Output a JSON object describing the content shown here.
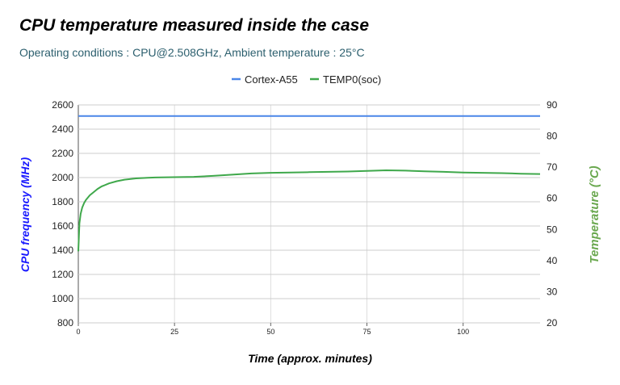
{
  "title": "CPU temperature measured inside the case",
  "subtitle": "Operating conditions : CPU@2.508GHz, Ambient temperature : 25°C",
  "chart_data": {
    "type": "line",
    "title": "CPU temperature measured inside the case",
    "subtitle": "Operating conditions : CPU@2.508GHz, Ambient temperature : 25°C",
    "xlabel": "Time (approx. minutes)",
    "ylabel_left": "CPU frequency (MHz)",
    "ylabel_right": "Temperature (°C)",
    "xlim": [
      0,
      120
    ],
    "ylim_left": [
      800,
      2600
    ],
    "ylim_right": [
      20,
      90
    ],
    "x_ticks": [
      0,
      25,
      50,
      75,
      100
    ],
    "y_ticks_left": [
      800,
      1000,
      1200,
      1400,
      1600,
      1800,
      2000,
      2200,
      2400,
      2600
    ],
    "y_ticks_right": [
      20,
      30,
      40,
      50,
      60,
      70,
      80,
      90
    ],
    "grid": true,
    "legend_position": "top",
    "series": [
      {
        "name": "Cortex-A55",
        "axis": "left",
        "color": "#4a86e8",
        "x": [
          0,
          120
        ],
        "values": [
          2508,
          2508
        ]
      },
      {
        "name": "TEMP0(soc)",
        "axis": "right",
        "color": "#3fa84b",
        "x": [
          0,
          0.3,
          0.6,
          1,
          1.5,
          2,
          3,
          4,
          5,
          6,
          8,
          10,
          12,
          15,
          18,
          20,
          25,
          30,
          35,
          40,
          45,
          50,
          55,
          60,
          65,
          70,
          75,
          80,
          85,
          90,
          95,
          100,
          105,
          110,
          115,
          120
        ],
        "values": [
          43,
          52,
          55,
          57,
          58.5,
          59.5,
          61,
          62,
          63,
          63.8,
          64.8,
          65.5,
          66,
          66.4,
          66.6,
          66.7,
          66.8,
          66.9,
          67.2,
          67.6,
          68,
          68.2,
          68.3,
          68.4,
          68.5,
          68.6,
          68.8,
          69,
          68.9,
          68.7,
          68.5,
          68.3,
          68.2,
          68.1,
          67.9,
          67.8
        ]
      }
    ]
  }
}
